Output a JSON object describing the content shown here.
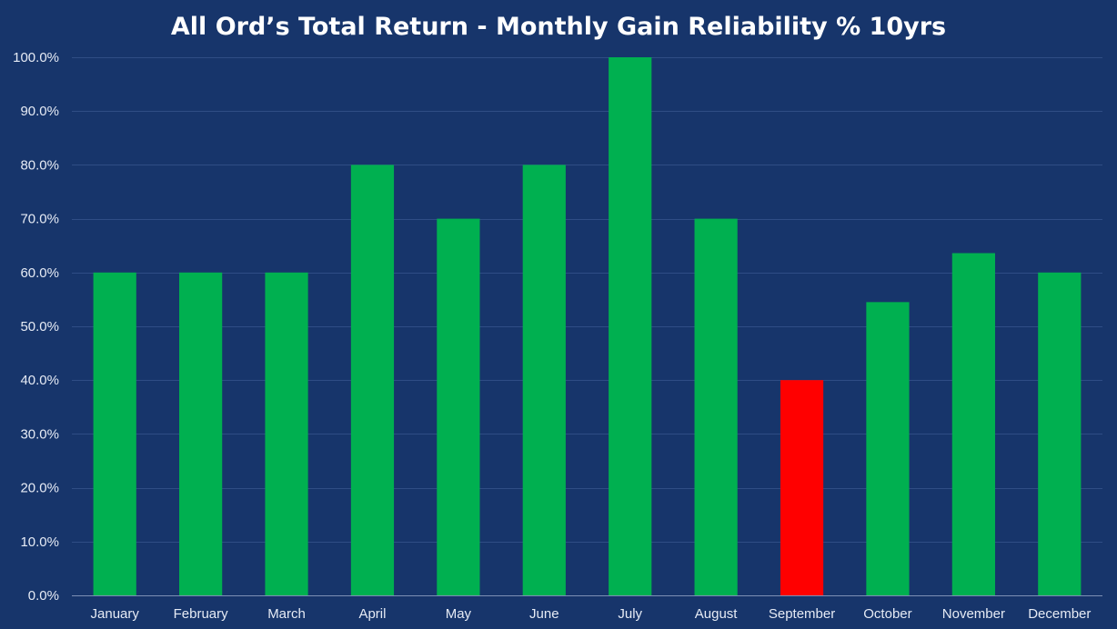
{
  "chart_data": {
    "type": "bar",
    "title": "All Ord’s Total Return - Monthly Gain Reliability % 10yrs",
    "categories": [
      "January",
      "February",
      "March",
      "April",
      "May",
      "June",
      "July",
      "August",
      "September",
      "October",
      "November",
      "December"
    ],
    "values": [
      60.0,
      60.0,
      60.0,
      80.0,
      70.0,
      80.0,
      100.0,
      70.0,
      40.0,
      54.5,
      63.6,
      60.0
    ],
    "ylim": [
      0,
      100
    ],
    "yticks": [
      0,
      10,
      20,
      30,
      40,
      50,
      60,
      70,
      80,
      90,
      100
    ],
    "ytick_labels": [
      "0.0%",
      "10.0%",
      "20.0%",
      "30.0%",
      "40.0%",
      "50.0%",
      "60.0%",
      "70.0%",
      "80.0%",
      "90.0%",
      "100.0%"
    ],
    "xlabel": "",
    "ylabel": "",
    "grid": true,
    "legend": "none",
    "bar_colors": [
      "#00b050",
      "#00b050",
      "#00b050",
      "#00b050",
      "#00b050",
      "#00b050",
      "#00b050",
      "#00b050",
      "#ff0000",
      "#00b050",
      "#00b050",
      "#00b050"
    ],
    "background_color": "#17356b"
  }
}
